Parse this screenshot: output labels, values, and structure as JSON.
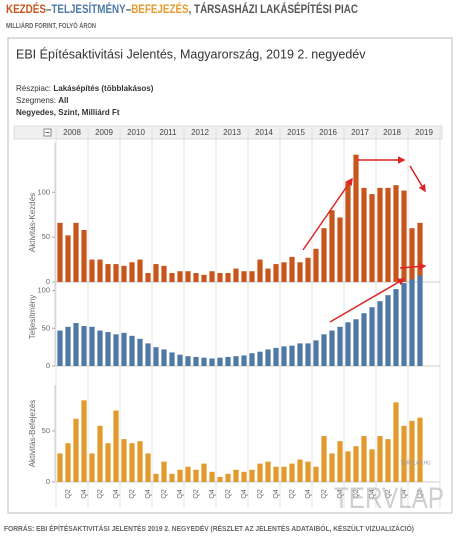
{
  "header": {
    "title_parts": [
      {
        "text": "KEZDÉS",
        "color": "#c8561c"
      },
      {
        "text": "–",
        "color": "#555555"
      },
      {
        "text": "TELJESÍTMÉNY",
        "color": "#4e79a7"
      },
      {
        "text": "–",
        "color": "#555555"
      },
      {
        "text": "BEFEJEZÉS",
        "color": "#e39a2d"
      },
      {
        "text": ", TÁRSASHÁZI LAKÁSÉPÍTÉSI PIAC",
        "color": "#555555"
      }
    ],
    "subtitle": "MILLIÁRD FORINT, FOLYÓ ÁRON"
  },
  "panel": {
    "title": "EBI Építésaktivitási Jelentés, Magyarország, 2019 2. negyedév",
    "filters": [
      {
        "label": "Részpiac:",
        "value": "Lakásépítés (többlakásos)"
      },
      {
        "label": "Szegmens:",
        "value": "All"
      }
    ],
    "measure": "Negyedes, Szint, Milliárd Ft",
    "years": [
      "2008",
      "2009",
      "2010",
      "2011",
      "2012",
      "2013",
      "2014",
      "2015",
      "2016",
      "2017",
      "2018",
      "2019"
    ]
  },
  "chart_data": [
    {
      "type": "bar",
      "y_label": "Aktivitás-Kezdés",
      "color": "#c8561c",
      "values": [
        66,
        52,
        66,
        58,
        25,
        25,
        20,
        20,
        18,
        22,
        25,
        10,
        20,
        18,
        10,
        12,
        12,
        10,
        8,
        12,
        10,
        10,
        15,
        12,
        12,
        25,
        15,
        20,
        22,
        28,
        22,
        27,
        37,
        60,
        80,
        72,
        112,
        142,
        105,
        98,
        105,
        105,
        108,
        102,
        60,
        66
      ],
      "ylim": [
        0,
        155
      ],
      "yticks": [
        0,
        50,
        100
      ]
    },
    {
      "type": "bar",
      "y_label": "Teljesítmény",
      "color": "#4e79a7",
      "values": [
        47,
        52,
        57,
        53,
        52,
        47,
        45,
        42,
        44,
        40,
        36,
        30,
        25,
        22,
        18,
        15,
        13,
        12,
        11,
        10,
        11,
        12,
        13,
        14,
        17,
        19,
        22,
        24,
        26,
        27,
        30,
        30,
        34,
        42,
        47,
        52,
        58,
        62,
        70,
        78,
        86,
        94,
        102,
        110,
        115,
        120
      ],
      "ylim": [
        0,
        130
      ],
      "yticks": [
        0,
        50,
        100
      ]
    },
    {
      "type": "bar",
      "y_label": "Aktivitás-Befejezés",
      "color": "#e39a2d",
      "categories": [
        null,
        "Q2",
        null,
        "Q4",
        null,
        "Q2",
        null,
        "Q4",
        null,
        "Q2",
        null,
        "Q4",
        null,
        "Q2",
        null,
        "Q4",
        null,
        "Q2",
        null,
        "Q4",
        null,
        "Q2",
        null,
        "Q4",
        null,
        "Q2",
        null,
        "Q4",
        null,
        "Q2",
        null,
        "Q4",
        null,
        "Q2",
        null,
        "Q4",
        null,
        "Q2",
        null,
        "Q4",
        null,
        "Q2",
        null,
        "Q4",
        null,
        "Q2"
      ],
      "values": [
        28,
        38,
        62,
        80,
        28,
        55,
        38,
        70,
        42,
        38,
        40,
        28,
        8,
        20,
        8,
        12,
        15,
        12,
        18,
        10,
        5,
        8,
        12,
        10,
        12,
        18,
        20,
        15,
        15,
        18,
        22,
        20,
        15,
        45,
        28,
        40,
        30,
        35,
        45,
        32,
        45,
        42,
        78,
        55,
        60,
        63
      ],
      "ylim": [
        0,
        95
      ],
      "yticks": [
        0,
        50
      ]
    }
  ],
  "footer": "FORRÁS: EBI ÉPÍTÉSAKTIVITÁSI JELENTÉS 2019 2. NEGYEDÉV (RÉSZLET AZ JELENTÉS ADATAIBÓL, KÉSZÜLT VIZUALIZÁCIÓ)",
  "watermark": {
    "logo": "TERVLAP",
    "url": "TERVLAP.HU"
  }
}
